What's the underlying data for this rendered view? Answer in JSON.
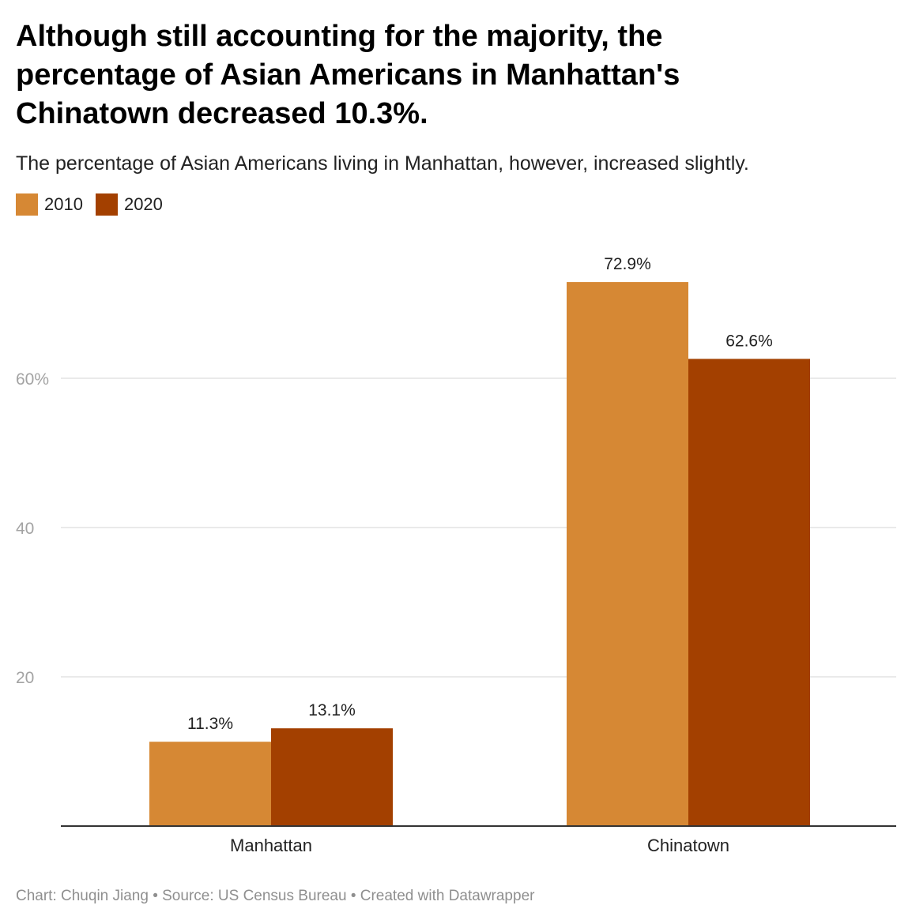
{
  "chart_data": {
    "type": "bar",
    "title": "Although still accounting for the majority, the percentage of Asian Americans in Manhattan's Chinatown decreased 10.3%.",
    "subtitle": "The percentage of Asian Americans living in Manhattan, however, increased slightly.",
    "categories": [
      "Manhattan",
      "Chinatown"
    ],
    "series": [
      {
        "name": "2010",
        "color": "#d68834",
        "values": [
          11.3,
          72.9
        ],
        "labels": [
          "11.3%",
          "72.9%"
        ]
      },
      {
        "name": "2020",
        "color": "#a34000",
        "values": [
          13.1,
          62.6
        ],
        "labels": [
          "13.1%",
          "62.6%"
        ]
      }
    ],
    "yticks": [
      {
        "value": 20,
        "label": "20"
      },
      {
        "value": 40,
        "label": "40"
      },
      {
        "value": 60,
        "label": "60%"
      }
    ],
    "ylim": [
      0,
      80
    ],
    "grid": true,
    "legend_position": "top-left",
    "xlabel": "",
    "ylabel": ""
  },
  "footer": "Chart: Chuqin Jiang • Source: US Census Bureau • Created with Datawrapper"
}
